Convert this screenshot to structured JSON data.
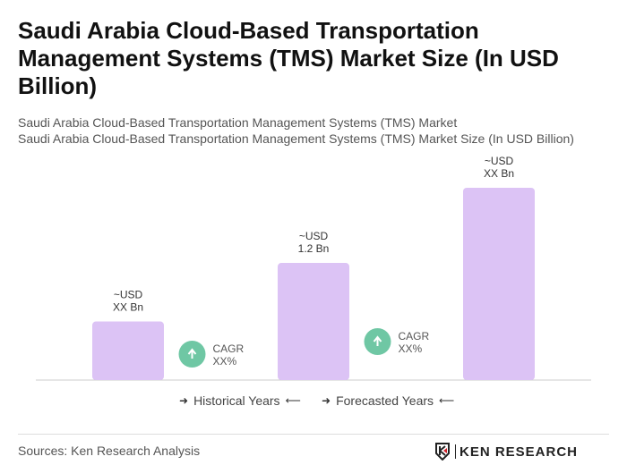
{
  "title": "Saudi Arabia Cloud-Based Transportation Management Systems (TMS) Market Size (In USD Billion)",
  "subtitle1": "Saudi Arabia Cloud-Based Transportation Management Systems (TMS) Market",
  "subtitle2": "Saudi Arabia Cloud-Based Transportation Management Systems (TMS) Market Size (In USD Billion)",
  "chart_data": {
    "type": "bar",
    "categories": [
      "",
      "",
      ""
    ],
    "values": [
      0.6,
      1.2,
      1.97
    ],
    "data_labels": [
      [
        "~USD",
        "XX Bn"
      ],
      [
        "~USD",
        "1.2 Bn"
      ],
      [
        "~USD",
        "XX Bn"
      ]
    ],
    "bar_color": "#dcc3f5",
    "annotations": [
      {
        "type": "cagr",
        "line1": "CAGR",
        "line2": "XX%",
        "between": [
          0,
          1
        ]
      },
      {
        "type": "cagr",
        "line1": "CAGR",
        "line2": "XX%",
        "between": [
          1,
          2
        ]
      }
    ],
    "cagr_icon_color": "#6fc7a4",
    "grid": false
  },
  "legend": {
    "historical": "Historical Years",
    "forecasted": "Forecasted Years"
  },
  "footer": {
    "source": "Sources: Ken Research Analysis",
    "logo_text": "KEN RESEARCH"
  }
}
